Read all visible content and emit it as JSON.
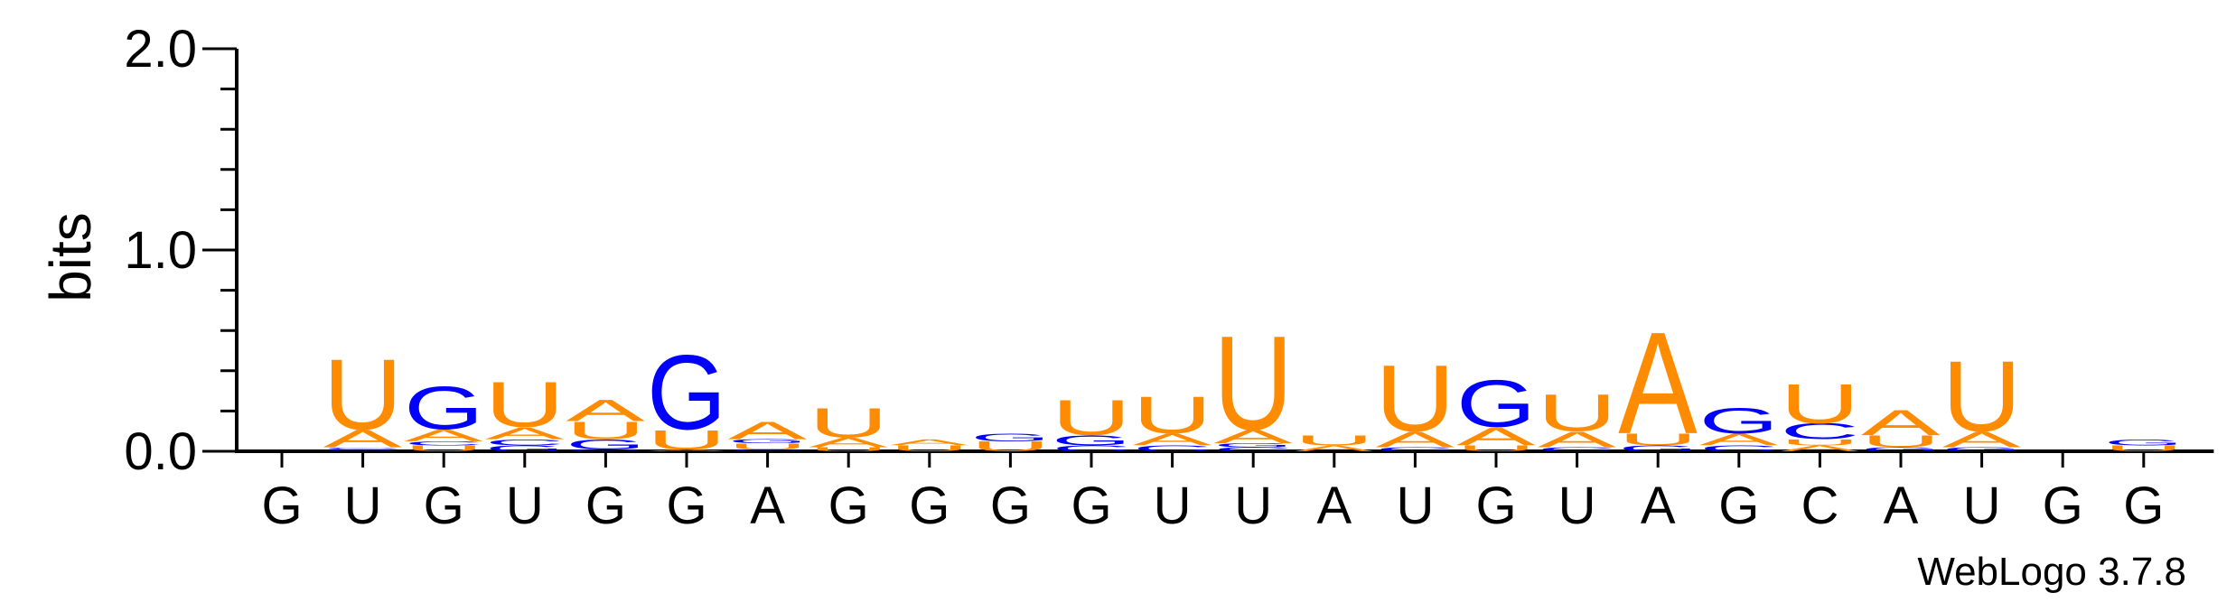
{
  "chart_data": {
    "type": "sequence_logo",
    "ylabel": "bits",
    "ylim": [
      0,
      2.0
    ],
    "yticks": [
      {
        "value": 0,
        "label": "0.0"
      },
      {
        "value": 1,
        "label": "1.0"
      },
      {
        "value": 2,
        "label": "2.0"
      }
    ],
    "colors": {
      "A": "#ff8c00",
      "U": "#ff8c00",
      "G": "#0000ff",
      "C": "#0000ff"
    },
    "positions": [
      {
        "label": "G",
        "stack": []
      },
      {
        "label": "U",
        "stack": [
          {
            "l": "G",
            "h": 0.01
          },
          {
            "l": "C",
            "h": 0.01
          },
          {
            "l": "A",
            "h": 0.09
          },
          {
            "l": "U",
            "h": 0.36
          }
        ]
      },
      {
        "label": "G",
        "stack": [
          {
            "l": "U",
            "h": 0.03
          },
          {
            "l": "C",
            "h": 0.02
          },
          {
            "l": "A",
            "h": 0.06
          },
          {
            "l": "G",
            "h": 0.22
          }
        ]
      },
      {
        "label": "U",
        "stack": [
          {
            "l": "G",
            "h": 0.03
          },
          {
            "l": "C",
            "h": 0.03
          },
          {
            "l": "A",
            "h": 0.06
          },
          {
            "l": "U",
            "h": 0.23
          }
        ]
      },
      {
        "label": "G",
        "stack": [
          {
            "l": "C",
            "h": 0.01
          },
          {
            "l": "G",
            "h": 0.05
          },
          {
            "l": "U",
            "h": 0.09
          },
          {
            "l": "A",
            "h": 0.11
          }
        ]
      },
      {
        "label": "G",
        "stack": [
          {
            "l": "A",
            "h": 0.01
          },
          {
            "l": "U",
            "h": 0.1
          },
          {
            "l": "G",
            "h": 0.38
          }
        ]
      },
      {
        "label": "A",
        "stack": [
          {
            "l": "C",
            "h": 0.01
          },
          {
            "l": "U",
            "h": 0.03
          },
          {
            "l": "G",
            "h": 0.02
          },
          {
            "l": "A",
            "h": 0.09
          }
        ]
      },
      {
        "label": "G",
        "stack": [
          {
            "l": "U",
            "h": 0.02
          },
          {
            "l": "A",
            "h": 0.05
          },
          {
            "l": "U",
            "h": 0.15
          }
        ]
      },
      {
        "label": "G",
        "stack": [
          {
            "l": "U",
            "h": 0.03
          },
          {
            "l": "A",
            "h": 0.03
          }
        ]
      },
      {
        "label": "G",
        "stack": [
          {
            "l": "U",
            "h": 0.05
          },
          {
            "l": "G",
            "h": 0.04
          }
        ]
      },
      {
        "label": "G",
        "stack": [
          {
            "l": "C",
            "h": 0.03
          },
          {
            "l": "G",
            "h": 0.05
          },
          {
            "l": "U",
            "h": 0.18
          }
        ]
      },
      {
        "label": "U",
        "stack": [
          {
            "l": "C",
            "h": 0.03
          },
          {
            "l": "A",
            "h": 0.06
          },
          {
            "l": "U",
            "h": 0.19
          }
        ]
      },
      {
        "label": "U",
        "stack": [
          {
            "l": "C",
            "h": 0.02
          },
          {
            "l": "G",
            "h": 0.02
          },
          {
            "l": "A",
            "h": 0.07
          },
          {
            "l": "U",
            "h": 0.48
          }
        ]
      },
      {
        "label": "A",
        "stack": [
          {
            "l": "A",
            "h": 0.03
          },
          {
            "l": "U",
            "h": 0.05
          }
        ]
      },
      {
        "label": "U",
        "stack": [
          {
            "l": "C",
            "h": 0.02
          },
          {
            "l": "A",
            "h": 0.08
          },
          {
            "l": "U",
            "h": 0.34
          }
        ]
      },
      {
        "label": "G",
        "stack": [
          {
            "l": "U",
            "h": 0.03
          },
          {
            "l": "A",
            "h": 0.09
          },
          {
            "l": "G",
            "h": 0.24
          }
        ]
      },
      {
        "label": "U",
        "stack": [
          {
            "l": "C",
            "h": 0.02
          },
          {
            "l": "A",
            "h": 0.08
          },
          {
            "l": "U",
            "h": 0.19
          }
        ]
      },
      {
        "label": "A",
        "stack": [
          {
            "l": "G",
            "h": 0.03
          },
          {
            "l": "U",
            "h": 0.06
          },
          {
            "l": "A",
            "h": 0.52
          }
        ]
      },
      {
        "label": "G",
        "stack": [
          {
            "l": "C",
            "h": 0.03
          },
          {
            "l": "A",
            "h": 0.06
          },
          {
            "l": "G",
            "h": 0.13
          }
        ]
      },
      {
        "label": "C",
        "stack": [
          {
            "l": "A",
            "h": 0.03
          },
          {
            "l": "U",
            "h": 0.03
          },
          {
            "l": "C",
            "h": 0.08
          },
          {
            "l": "U",
            "h": 0.2
          }
        ]
      },
      {
        "label": "A",
        "stack": [
          {
            "l": "G",
            "h": 0.02
          },
          {
            "l": "U",
            "h": 0.06
          },
          {
            "l": "A",
            "h": 0.13
          }
        ]
      },
      {
        "label": "U",
        "stack": [
          {
            "l": "G",
            "h": 0.02
          },
          {
            "l": "A",
            "h": 0.08
          },
          {
            "l": "U",
            "h": 0.36
          }
        ]
      },
      {
        "label": "G",
        "stack": []
      },
      {
        "label": "G",
        "stack": [
          {
            "l": "U",
            "h": 0.03
          },
          {
            "l": "G",
            "h": 0.03
          }
        ]
      }
    ]
  },
  "footer": {
    "credit": "WebLogo 3.7.8"
  }
}
